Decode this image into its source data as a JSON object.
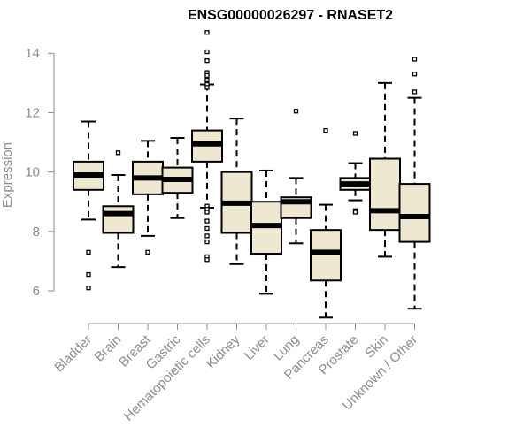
{
  "chart_data": {
    "type": "box",
    "title": "ENSG00000026297 - RNASET2",
    "xlabel": "",
    "ylabel": "Expression",
    "ylim": [
      4.9,
      14.9
    ],
    "yticks": [
      6,
      8,
      10,
      12,
      14
    ],
    "grid": false,
    "categories": [
      "Bladder",
      "Brain",
      "Breast",
      "Gastric",
      "Hematopoietic cells",
      "Kidney",
      "Liver",
      "Lung",
      "Pancreas",
      "Prostate",
      "Skin",
      "Unknown / Other"
    ],
    "box_color": "#efe8d0",
    "series": [
      {
        "whisker_low": 8.4,
        "q1": 9.4,
        "median": 9.9,
        "q3": 10.35,
        "whisker_high": 11.7,
        "outliers": [
          7.3,
          6.55,
          6.1
        ]
      },
      {
        "whisker_low": 6.8,
        "q1": 7.95,
        "median": 8.6,
        "q3": 8.85,
        "whisker_high": 9.9,
        "outliers": [
          10.65
        ]
      },
      {
        "whisker_low": 7.85,
        "q1": 9.25,
        "median": 9.8,
        "q3": 10.35,
        "whisker_high": 11.05,
        "outliers": [
          7.3
        ]
      },
      {
        "whisker_low": 8.45,
        "q1": 9.3,
        "median": 9.75,
        "q3": 10.15,
        "whisker_high": 11.15,
        "outliers": []
      },
      {
        "whisker_low": 8.8,
        "q1": 10.35,
        "median": 10.95,
        "q3": 11.4,
        "whisker_high": 12.95,
        "outliers": [
          14.7,
          14.05,
          13.75,
          13.35,
          13.25,
          13.1,
          12.95,
          12.85,
          8.85,
          8.75,
          8.65,
          8.35,
          8.1,
          7.85,
          7.65,
          7.15,
          7.05
        ]
      },
      {
        "whisker_low": 6.9,
        "q1": 7.95,
        "median": 8.95,
        "q3": 10.0,
        "whisker_high": 11.8,
        "outliers": []
      },
      {
        "whisker_low": 5.9,
        "q1": 7.25,
        "median": 8.2,
        "q3": 9.0,
        "whisker_high": 10.05,
        "outliers": []
      },
      {
        "whisker_low": 7.6,
        "q1": 8.45,
        "median": 9.0,
        "q3": 9.15,
        "whisker_high": 9.8,
        "outliers": [
          12.05
        ]
      },
      {
        "whisker_low": 5.1,
        "q1": 6.35,
        "median": 7.3,
        "q3": 8.05,
        "whisker_high": 8.9,
        "outliers": [
          11.4
        ]
      },
      {
        "whisker_low": 9.05,
        "q1": 9.4,
        "median": 9.6,
        "q3": 9.8,
        "whisker_high": 10.3,
        "outliers": [
          11.3,
          8.7,
          8.65
        ]
      },
      {
        "whisker_low": 7.15,
        "q1": 8.05,
        "median": 8.7,
        "q3": 10.45,
        "whisker_high": 13.0,
        "outliers": []
      },
      {
        "whisker_low": 5.4,
        "q1": 7.65,
        "median": 8.5,
        "q3": 9.6,
        "whisker_high": 12.5,
        "outliers": [
          13.8,
          13.3,
          12.7
        ]
      }
    ]
  }
}
